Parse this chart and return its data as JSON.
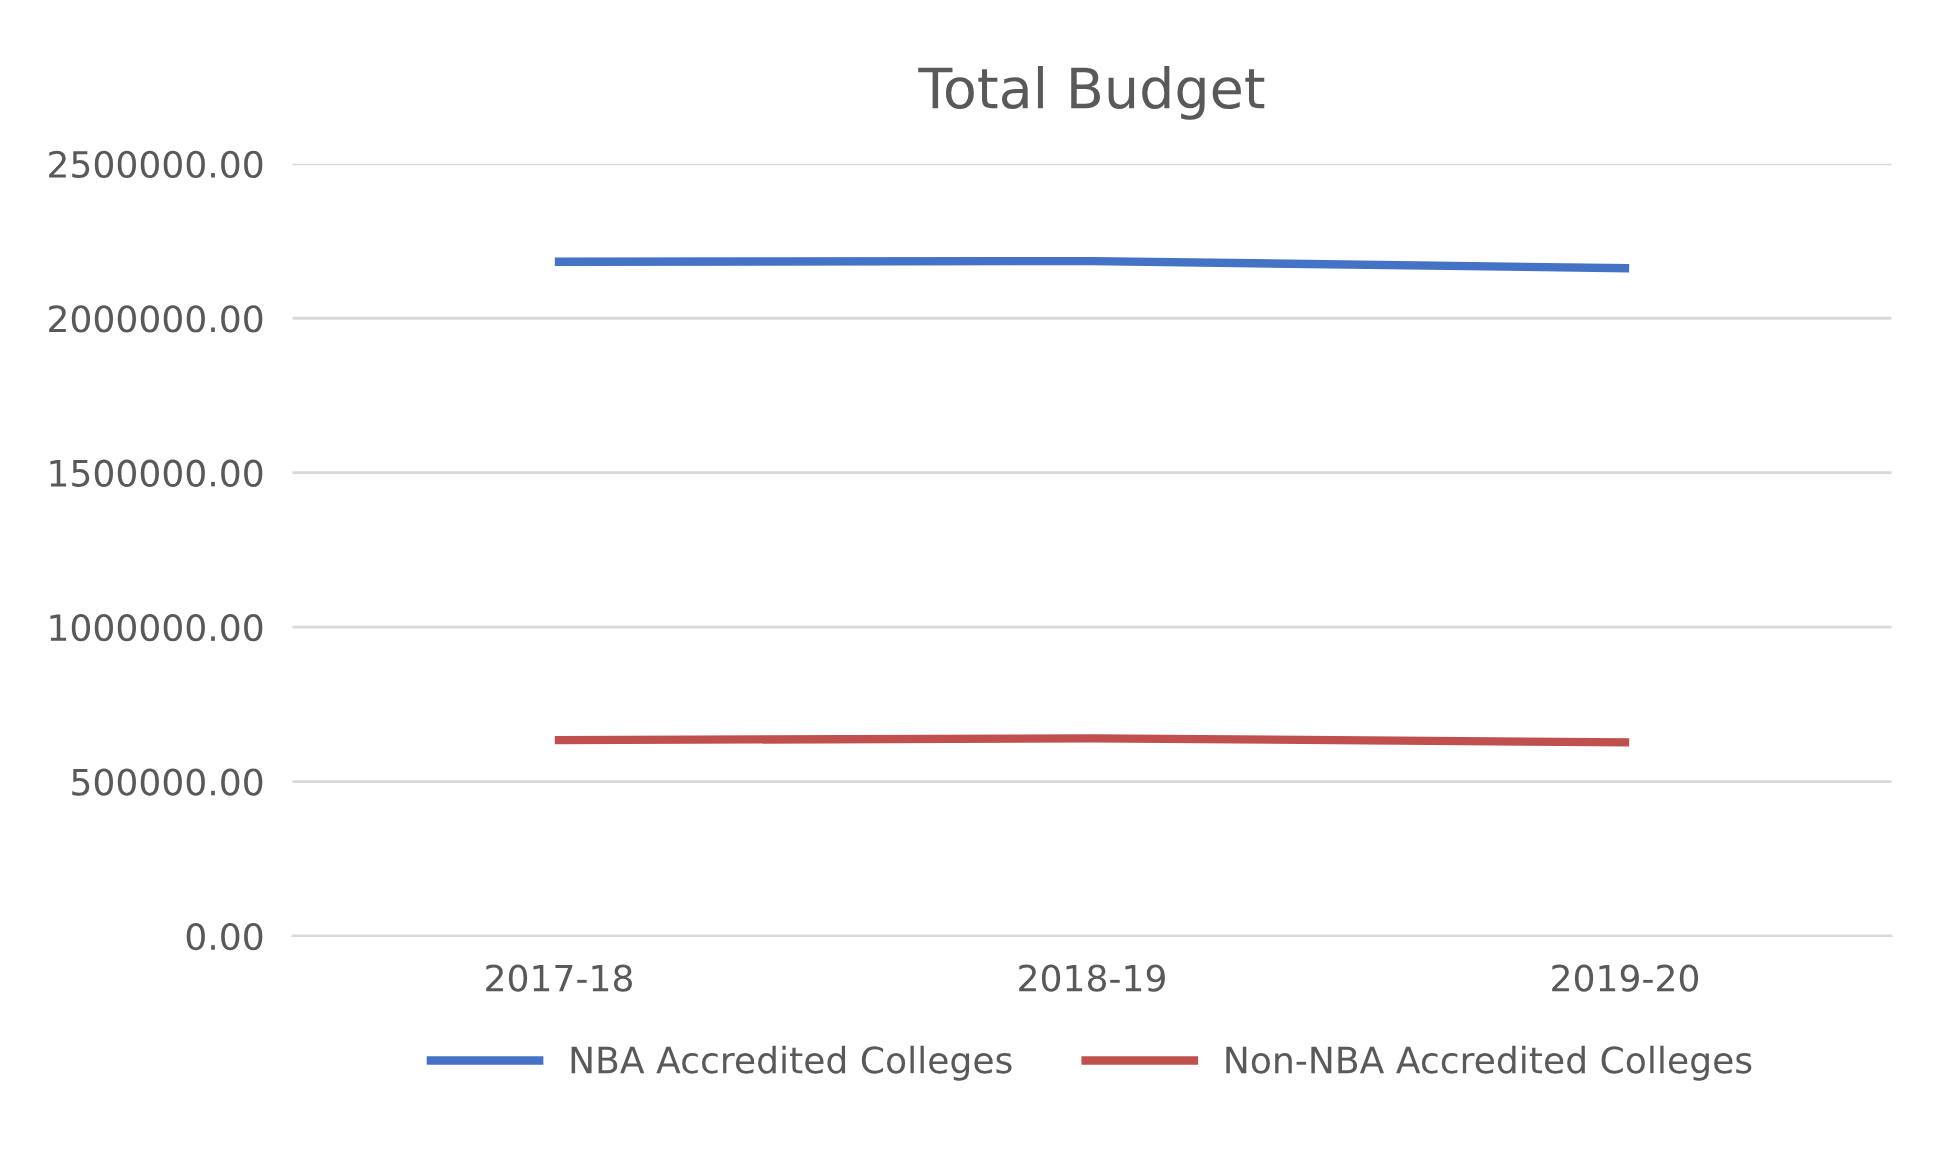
{
  "chart_data": {
    "type": "line",
    "title": "Total Budget",
    "categories": [
      "2017-18",
      "2018-19",
      "2019-20"
    ],
    "series": [
      {
        "name": "NBA Accredited Colleges",
        "color": "#4472c4",
        "values": [
          2183000,
          2185000,
          2162000
        ]
      },
      {
        "name": "Non-NBA Accredited Colleges",
        "color": "#c0504d",
        "values": [
          634000,
          640000,
          627000
        ]
      }
    ],
    "ylim": [
      0,
      2500000
    ],
    "yticks": [
      {
        "value": 0,
        "label": "0.00"
      },
      {
        "value": 500000,
        "label": "500000.00"
      },
      {
        "value": 1000000,
        "label": "1000000.00"
      },
      {
        "value": 1500000,
        "label": "1500000.00"
      },
      {
        "value": 2000000,
        "label": "2000000.00"
      },
      {
        "value": 2500000,
        "label": "2500000.00"
      }
    ],
    "grid": "y",
    "legend": "bottom",
    "marker": "none",
    "line_style": "solid"
  }
}
